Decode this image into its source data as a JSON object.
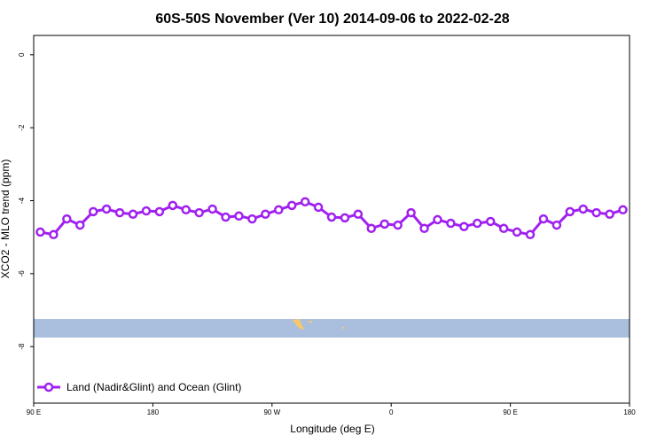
{
  "chart_data": {
    "type": "line",
    "title": "60S-50S November (Ver 10)   2014-09-06 to 2022-02-28",
    "x_label": "Longitude (deg E)",
    "y_label": "XCO2 - MLO trend (ppm)",
    "x": [
      95,
      105,
      115,
      125,
      135,
      145,
      155,
      165,
      175,
      185,
      195,
      205,
      215,
      225,
      235,
      245,
      255,
      265,
      275,
      285,
      295,
      305,
      315,
      325,
      335,
      345,
      355,
      365,
      375,
      385,
      395,
      405,
      415,
      425,
      435,
      445,
      455,
      465,
      475,
      485,
      495,
      505,
      515,
      525,
      535
    ],
    "series": [
      {
        "name": "Land (Nadir&Glint) and Ocean (Glint)",
        "color": "#a020f0",
        "values": [
          -4.86,
          -4.93,
          -4.5,
          -4.67,
          -4.3,
          -4.23,
          -4.33,
          -4.37,
          -4.28,
          -4.3,
          -4.13,
          -4.25,
          -4.33,
          -4.23,
          -4.45,
          -4.42,
          -4.5,
          -4.37,
          -4.25,
          -4.13,
          -4.03,
          -4.18,
          -4.45,
          -4.47,
          -4.37,
          -4.76,
          -4.64,
          -4.67,
          -4.33,
          -4.76,
          -4.52,
          -4.62,
          -4.71,
          -4.62,
          -4.57,
          -4.76,
          -4.86,
          -4.93,
          -4.5,
          -4.67,
          -4.3,
          -4.23,
          -4.33,
          -4.37,
          -4.25
        ]
      }
    ],
    "xlim": [
      90,
      540
    ],
    "xticks": [
      {
        "value": 90,
        "label": "90 E"
      },
      180,
      {
        "value": 270,
        "label": "90 W"
      },
      {
        "value": 360,
        "label": "0"
      },
      {
        "value": 450,
        "label": "90 E"
      },
      {
        "value": 540,
        "label": "180"
      }
    ],
    "ylim": [
      -9.55,
      0.53
    ],
    "yticks": [
      0,
      -2,
      -4,
      -6,
      -8
    ],
    "legend": "bottom-left"
  }
}
